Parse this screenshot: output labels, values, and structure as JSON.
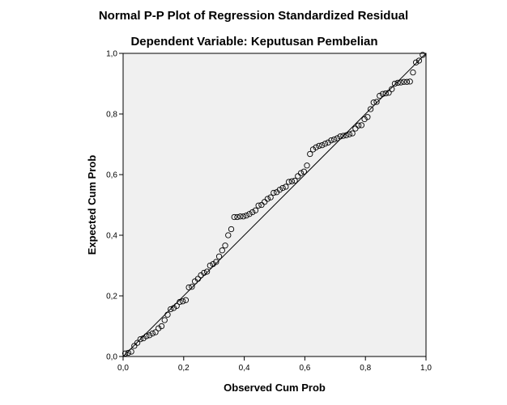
{
  "chart_data": {
    "type": "scatter",
    "title": "Normal P-P Plot of Regression Standardized Residual",
    "subtitle": "Dependent Variable: Keputusan Pembelian",
    "xlabel": "Observed Cum Prob",
    "ylabel": "Expected Cum Prob",
    "xlim": [
      0,
      1
    ],
    "ylim": [
      0,
      1
    ],
    "x_ticks": [
      "0,0",
      "0,2",
      "0,4",
      "0,6",
      "0,8",
      "1,0"
    ],
    "y_ticks": [
      "0,0",
      "0,2",
      "0,4",
      "0,6",
      "0,8",
      "1,0"
    ],
    "grid": false,
    "reference_line": {
      "from": [
        0,
        0
      ],
      "to": [
        1,
        1
      ]
    },
    "plot_background": "#f0f0f0",
    "marker": "open-circle",
    "points": [
      [
        0.007,
        0.01
      ],
      [
        0.017,
        0.012
      ],
      [
        0.027,
        0.016
      ],
      [
        0.037,
        0.035
      ],
      [
        0.047,
        0.045
      ],
      [
        0.057,
        0.057
      ],
      [
        0.067,
        0.06
      ],
      [
        0.077,
        0.067
      ],
      [
        0.087,
        0.07
      ],
      [
        0.097,
        0.076
      ],
      [
        0.107,
        0.08
      ],
      [
        0.117,
        0.093
      ],
      [
        0.127,
        0.1
      ],
      [
        0.137,
        0.12
      ],
      [
        0.147,
        0.138
      ],
      [
        0.157,
        0.156
      ],
      [
        0.167,
        0.16
      ],
      [
        0.177,
        0.167
      ],
      [
        0.187,
        0.18
      ],
      [
        0.197,
        0.182
      ],
      [
        0.207,
        0.186
      ],
      [
        0.217,
        0.228
      ],
      [
        0.227,
        0.23
      ],
      [
        0.237,
        0.248
      ],
      [
        0.247,
        0.256
      ],
      [
        0.257,
        0.268
      ],
      [
        0.267,
        0.276
      ],
      [
        0.277,
        0.28
      ],
      [
        0.287,
        0.3
      ],
      [
        0.297,
        0.305
      ],
      [
        0.307,
        0.312
      ],
      [
        0.317,
        0.33
      ],
      [
        0.327,
        0.35
      ],
      [
        0.337,
        0.366
      ],
      [
        0.347,
        0.4
      ],
      [
        0.357,
        0.42
      ],
      [
        0.367,
        0.46
      ],
      [
        0.377,
        0.46
      ],
      [
        0.387,
        0.462
      ],
      [
        0.397,
        0.462
      ],
      [
        0.407,
        0.465
      ],
      [
        0.417,
        0.47
      ],
      [
        0.427,
        0.476
      ],
      [
        0.437,
        0.482
      ],
      [
        0.447,
        0.498
      ],
      [
        0.457,
        0.5
      ],
      [
        0.467,
        0.51
      ],
      [
        0.477,
        0.52
      ],
      [
        0.487,
        0.525
      ],
      [
        0.497,
        0.54
      ],
      [
        0.507,
        0.542
      ],
      [
        0.517,
        0.55
      ],
      [
        0.527,
        0.556
      ],
      [
        0.537,
        0.56
      ],
      [
        0.547,
        0.576
      ],
      [
        0.557,
        0.578
      ],
      [
        0.567,
        0.58
      ],
      [
        0.577,
        0.595
      ],
      [
        0.587,
        0.605
      ],
      [
        0.597,
        0.61
      ],
      [
        0.607,
        0.63
      ],
      [
        0.617,
        0.668
      ],
      [
        0.627,
        0.683
      ],
      [
        0.637,
        0.69
      ],
      [
        0.647,
        0.695
      ],
      [
        0.657,
        0.697
      ],
      [
        0.667,
        0.702
      ],
      [
        0.677,
        0.706
      ],
      [
        0.687,
        0.713
      ],
      [
        0.697,
        0.716
      ],
      [
        0.707,
        0.72
      ],
      [
        0.717,
        0.726
      ],
      [
        0.727,
        0.728
      ],
      [
        0.737,
        0.73
      ],
      [
        0.747,
        0.733
      ],
      [
        0.757,
        0.736
      ],
      [
        0.767,
        0.752
      ],
      [
        0.777,
        0.762
      ],
      [
        0.787,
        0.763
      ],
      [
        0.797,
        0.783
      ],
      [
        0.807,
        0.79
      ],
      [
        0.817,
        0.816
      ],
      [
        0.827,
        0.838
      ],
      [
        0.837,
        0.84
      ],
      [
        0.847,
        0.86
      ],
      [
        0.857,
        0.866
      ],
      [
        0.867,
        0.868
      ],
      [
        0.877,
        0.87
      ],
      [
        0.887,
        0.882
      ],
      [
        0.897,
        0.9
      ],
      [
        0.907,
        0.903
      ],
      [
        0.917,
        0.904
      ],
      [
        0.927,
        0.906
      ],
      [
        0.937,
        0.906
      ],
      [
        0.947,
        0.907
      ],
      [
        0.957,
        0.937
      ],
      [
        0.967,
        0.97
      ],
      [
        0.977,
        0.976
      ],
      [
        0.989,
        0.995
      ]
    ]
  }
}
